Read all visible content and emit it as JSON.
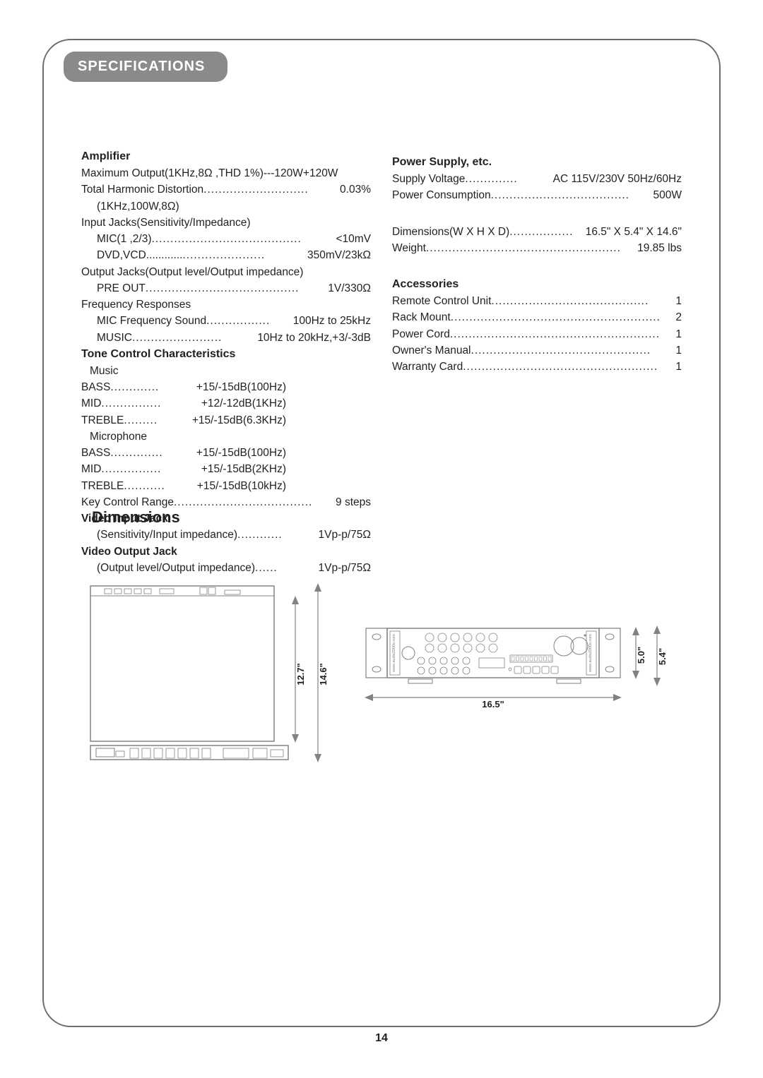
{
  "tab_title": "SPECIFICATIONS",
  "amplifier": {
    "title": "Amplifier",
    "rows": [
      {
        "indent": 0,
        "lbl": "Maximum Output(1KHz,8Ω ,THD 1%)---120W+120W",
        "dots": "",
        "val": ""
      },
      {
        "indent": 0,
        "lbl": "Total Harmonic Distortion ",
        "dots": "............................",
        "val": " 0.03%"
      },
      {
        "indent": 1,
        "lbl": "(1KHz,100W,8Ω)",
        "dots": "",
        "val": ""
      },
      {
        "indent": 0,
        "lbl": "Input Jacks(Sensitivity/Impedance)",
        "dots": "",
        "val": ""
      },
      {
        "indent": 1,
        "lbl": "MIC(1 ,2/3) ",
        "dots": "........................................",
        "val": " <10mV"
      },
      {
        "indent": 1,
        "lbl": "DVD,VCD............ ",
        "dots": "......................",
        "val": " 350mV/23kΩ"
      },
      {
        "indent": 0,
        "lbl": "Output Jacks(Output level/Output impedance)",
        "dots": "",
        "val": ""
      },
      {
        "indent": 1,
        "lbl": "PRE OUT ",
        "dots": ".........................................",
        "val": " 1V/330Ω"
      },
      {
        "indent": 0,
        "lbl": "Frequency Responses",
        "dots": "",
        "val": ""
      },
      {
        "indent": 1,
        "lbl": "MIC Frequency Sound",
        "dots": ".................",
        "val": " 100Hz to 25kHz"
      },
      {
        "indent": 1,
        "lbl": "MUSIC ",
        "dots": "........................",
        "val": " 10Hz to 20kHz,+3/-3dB"
      }
    ],
    "tone_title": "Tone Control Characteristics",
    "tone": {
      "music_label": "Music",
      "music_rows": [
        {
          "lbl": "BASS ",
          "dots": ".............",
          "val": " +15/-15dB(100Hz)"
        },
        {
          "lbl": "MID ",
          "dots": "................",
          "val": " +12/-12dB(1KHz)"
        },
        {
          "lbl": "TREBLE ",
          "dots": ".........",
          "val": " +15/-15dB(6.3KHz)"
        }
      ],
      "mic_label": "Microphone",
      "mic_rows": [
        {
          "lbl": "BASS ",
          "dots": "..............",
          "val": "+15/-15dB(100Hz)"
        },
        {
          "lbl": "MID ",
          "dots": "................",
          "val": " +15/-15dB(2KHz)"
        },
        {
          "lbl": "TREBLE ",
          "dots": "...........",
          "val": " +15/-15dB(10kHz)"
        }
      ]
    },
    "tail_rows": [
      {
        "indent": 0,
        "lbl": "Key Control Range ",
        "dots": ".....................................",
        "val": " 9 steps"
      },
      {
        "indent": 0,
        "lbl": "Video Input Jack",
        "bold": true,
        "dots": "",
        "val": ""
      },
      {
        "indent": 1,
        "lbl": "(Sensitivity/Input impedance) ",
        "dots": "............",
        "val": " 1Vp-p/75Ω"
      },
      {
        "indent": 0,
        "lbl": "Video Output Jack",
        "bold": true,
        "dots": "",
        "val": ""
      },
      {
        "indent": 1,
        "lbl": "(Output level/Output impedance) ",
        "dots": "......",
        "val": " 1Vp-p/75Ω"
      }
    ]
  },
  "power": {
    "title": "Power Supply, etc.",
    "rows": [
      {
        "lbl": "Supply Voltage ",
        "dots": "..............",
        "val": " AC 115V/230V  50Hz/60Hz"
      },
      {
        "lbl": "Power Consumption ",
        "dots": ".....................................",
        "val": "500W"
      }
    ],
    "dim_rows": [
      {
        "lbl": "Dimensions(W X H X D)",
        "dots": ".................",
        "val": "16.5\" X 5.4\" X 14.6\""
      },
      {
        "lbl": "Weight",
        "dots": "....................................................",
        "val": "19.85 lbs"
      }
    ]
  },
  "accessories": {
    "title": "Accessories",
    "rows": [
      {
        "lbl": "Remote Control Unit ",
        "dots": "..........................................",
        "val": " 1"
      },
      {
        "lbl": "Rack Mount",
        "dots": "........................................................",
        "val": "2"
      },
      {
        "lbl": "Power Cord",
        "dots": "........................................................",
        "val": "1"
      },
      {
        "lbl": "Owner's Manual ",
        "dots": "................................................",
        "val": " 1"
      },
      {
        "lbl": "Warranty Card",
        "dots": "....................................................",
        "val": "1"
      }
    ]
  },
  "dimensions_title": "Dimensions",
  "diagram": {
    "side": {
      "h_inner": "12.7\"",
      "h_outer": "14.6\""
    },
    "front": {
      "w": "16.5\"",
      "h_inner": "5.0\"",
      "h_outer": "5.4\""
    },
    "brand_text": "www.audio2000s.com",
    "stroke": "#808285",
    "text_color": "#231f20"
  },
  "page_number": "14"
}
